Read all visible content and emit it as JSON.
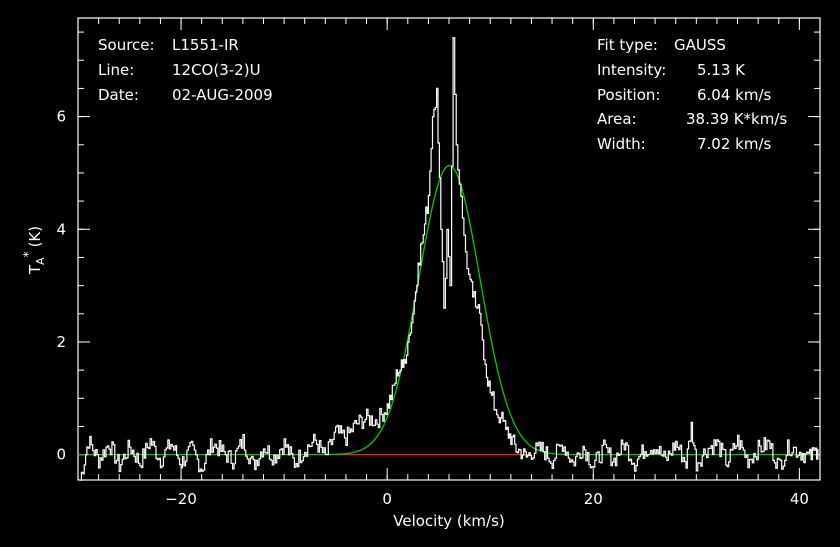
{
  "header_left": {
    "source_label": "Source:",
    "source_value": "L1551-IR",
    "line_label": "Line:",
    "line_value": "12CO(3-2)U",
    "date_label": "Date:",
    "date_value": "02-AUG-2009"
  },
  "header_right": {
    "fit_label": "Fit type:",
    "fit_value": "GAUSS",
    "intensity_label": "Intensity:",
    "intensity_value": "5.13 K",
    "position_label": "Position:",
    "position_value": "6.04 km/s",
    "area_label": "Area:",
    "area_value": "38.39 K*km/s",
    "width_label": "Width:",
    "width_value": "7.02 km/s"
  },
  "colors": {
    "background": "#000000",
    "axes": "#ffffff",
    "spectrum": "#ffffff",
    "fit": "#00cc00",
    "baseline": "#ff2020"
  },
  "chart_data": {
    "type": "line",
    "xlabel": "Velocity (km/s)",
    "ylabel_main": "T",
    "ylabel_sub": "A",
    "ylabel_sup": "*",
    "ylabel_unit": "(K)",
    "xlim": [
      -30,
      42
    ],
    "ylim": [
      -0.45,
      7.75
    ],
    "xticks": [
      -20,
      0,
      20,
      40
    ],
    "xtick_labels": [
      "−20",
      "0",
      "20",
      "40"
    ],
    "yticks": [
      0,
      2,
      4,
      6
    ],
    "ytick_labels": [
      "0",
      "2",
      "4",
      "6"
    ],
    "x_minor_step": 2,
    "y_minor_step": 0.5,
    "series": [
      {
        "kind": "spectrum",
        "x": [
          -29.8,
          -29.0,
          -28.0,
          -27.0,
          -26.0,
          -25.0,
          -24.0,
          -23.0,
          -22.0,
          -21.0,
          -20.0,
          -19.0,
          -18.0,
          -17.0,
          -16.0,
          -15.0,
          -14.0,
          -13.0,
          -12.0,
          -11.0,
          -10.0,
          -9.0,
          -8.0,
          -7.0,
          -6.0,
          -5.0,
          -4.0,
          -3.0,
          -2.0,
          -1.0,
          0.0,
          0.5,
          1.0,
          1.5,
          2.0,
          2.5,
          3.0,
          3.5,
          4.0,
          4.4,
          4.8,
          5.2,
          5.5,
          5.8,
          6.1,
          6.4,
          6.7,
          7.0,
          7.3,
          7.6,
          7.9,
          8.3,
          8.7,
          9.1,
          9.5,
          10.0,
          10.5,
          11.0,
          11.5,
          12.0,
          12.5,
          13.0,
          13.5,
          14.0,
          15.0,
          16.0,
          17.0,
          18.0,
          19.0,
          20.0,
          21.0,
          22.0,
          23.0,
          24.0,
          25.0,
          26.0,
          27.0,
          28.0,
          29.0,
          29.5,
          30.0,
          31.0,
          32.0,
          33.0,
          34.0,
          35.0,
          36.0,
          37.0,
          38.0,
          39.0,
          40.0,
          41.0,
          41.8
        ],
        "y": [
          -0.45,
          0.25,
          -0.1,
          0.2,
          -0.2,
          0.15,
          -0.15,
          0.25,
          -0.1,
          0.2,
          -0.15,
          0.1,
          -0.25,
          0.2,
          0.05,
          -0.1,
          0.25,
          -0.2,
          0.15,
          -0.05,
          0.2,
          -0.15,
          0.1,
          0.25,
          -0.05,
          0.4,
          0.3,
          0.55,
          0.65,
          0.6,
          0.85,
          1.1,
          1.5,
          1.55,
          2.0,
          2.5,
          3.4,
          3.9,
          4.6,
          6.0,
          6.5,
          4.0,
          2.6,
          4.0,
          3.0,
          7.4,
          5.5,
          4.8,
          4.2,
          3.6,
          3.2,
          2.8,
          2.6,
          2.3,
          1.6,
          1.1,
          0.8,
          0.65,
          0.45,
          0.3,
          0.1,
          0.05,
          -0.05,
          0.05,
          0.1,
          -0.1,
          0.2,
          -0.15,
          0.15,
          -0.2,
          0.1,
          -0.1,
          0.2,
          -0.15,
          0.1,
          0.15,
          -0.1,
          0.2,
          -0.15,
          0.5,
          -0.15,
          0.1,
          0.2,
          -0.15,
          0.25,
          -0.1,
          0.1,
          0.2,
          -0.2,
          0.15,
          0.05,
          -0.05,
          0.1
        ]
      },
      {
        "kind": "gaussian_fit",
        "amplitude": 5.13,
        "center": 6.04,
        "fwhm": 7.02
      },
      {
        "kind": "baseline",
        "x": [
          -5,
          14
        ],
        "y": [
          0,
          0
        ]
      }
    ]
  }
}
